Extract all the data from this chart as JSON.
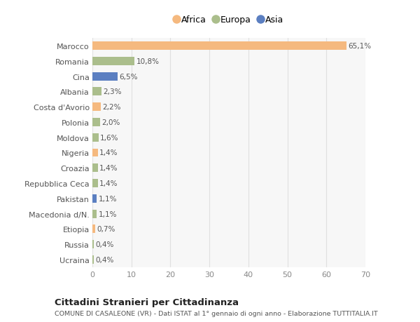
{
  "countries": [
    "Marocco",
    "Romania",
    "Cina",
    "Albania",
    "Costa d'Avorio",
    "Polonia",
    "Moldova",
    "Nigeria",
    "Croazia",
    "Repubblica Ceca",
    "Pakistan",
    "Macedonia d/N.",
    "Etiopia",
    "Russia",
    "Ucraina"
  ],
  "values": [
    65.1,
    10.8,
    6.5,
    2.3,
    2.2,
    2.0,
    1.6,
    1.4,
    1.4,
    1.4,
    1.1,
    1.1,
    0.7,
    0.4,
    0.4
  ],
  "labels": [
    "65,1%",
    "10,8%",
    "6,5%",
    "2,3%",
    "2,2%",
    "2,0%",
    "1,6%",
    "1,4%",
    "1,4%",
    "1,4%",
    "1,1%",
    "1,1%",
    "0,7%",
    "0,4%",
    "0,4%"
  ],
  "continents": [
    "Africa",
    "Europa",
    "Asia",
    "Europa",
    "Africa",
    "Europa",
    "Europa",
    "Africa",
    "Europa",
    "Europa",
    "Asia",
    "Europa",
    "Africa",
    "Europa",
    "Europa"
  ],
  "colors": {
    "Africa": "#F5B97F",
    "Europa": "#ABBE8C",
    "Asia": "#5B7FC1"
  },
  "bg_color": "#FFFFFF",
  "plot_bg_color": "#F7F7F7",
  "title": "Cittadini Stranieri per Cittadinanza",
  "subtitle": "COMUNE DI CASALEONE (VR) - Dati ISTAT al 1° gennaio di ogni anno - Elaborazione TUTTITALIA.IT",
  "xlim": [
    0,
    70
  ],
  "xticks": [
    0,
    10,
    20,
    30,
    40,
    50,
    60,
    70
  ],
  "grid_color": "#E0E0E0",
  "bar_height": 0.55
}
